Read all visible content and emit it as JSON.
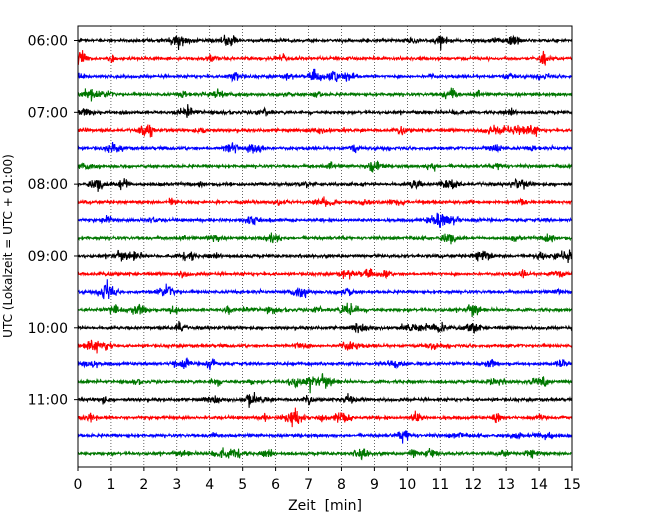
{
  "chart_data": {
    "type": "line",
    "title": "",
    "xlabel": "Zeit  [min]",
    "ylabel": "UTC (Lokalzeit = UTC + 01:00)",
    "xlim": [
      0,
      15
    ],
    "x_ticks": [
      "0",
      "1",
      "2",
      "3",
      "4",
      "5",
      "6",
      "7",
      "8",
      "9",
      "10",
      "11",
      "12",
      "13",
      "14",
      "15"
    ],
    "y_ticks": [
      "06:00",
      "07:00",
      "08:00",
      "09:00",
      "10:00",
      "11:00"
    ],
    "grid": "vertical dotted",
    "trace_interval_minutes": 15,
    "first_trace": "06:00",
    "last_trace": "11:45",
    "trace_colors": [
      "#000000",
      "#ff0000",
      "#0000ff",
      "#007700"
    ],
    "legend": "none"
  }
}
